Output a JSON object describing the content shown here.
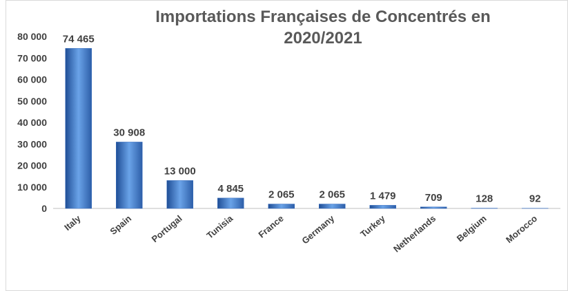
{
  "chart_data": {
    "type": "bar",
    "title": "Importations Françaises de Concentrés en 2020/2021",
    "categories": [
      "Italy",
      "Spain",
      "Portugal",
      "Tunisia",
      "France",
      "Germany",
      "Turkey",
      "Netherlands",
      "Belgium",
      "Morocco"
    ],
    "values": [
      74465,
      30908,
      13000,
      4845,
      2065,
      2065,
      1479,
      709,
      128,
      92
    ],
    "value_labels": [
      "74 465",
      "30 908",
      "13 000",
      "4 845",
      "2 065",
      "2 065",
      "1 479",
      "709",
      "128",
      "92"
    ],
    "color": "#3a6fbf",
    "ylim": [
      0,
      80000
    ],
    "yticks": [
      0,
      {
        "value": 10000,
        "label": "10 000"
      },
      {
        "value": 20000,
        "label": "20 000"
      },
      {
        "value": 30000,
        "label": "30 000"
      },
      {
        "value": 40000,
        "label": "40 000"
      },
      {
        "value": 50000,
        "label": "50 000"
      },
      {
        "value": 60000,
        "label": "60 000"
      },
      {
        "value": 70000,
        "label": "70 000"
      },
      {
        "value": 80000,
        "label": "80 000"
      }
    ],
    "grid": false
  }
}
